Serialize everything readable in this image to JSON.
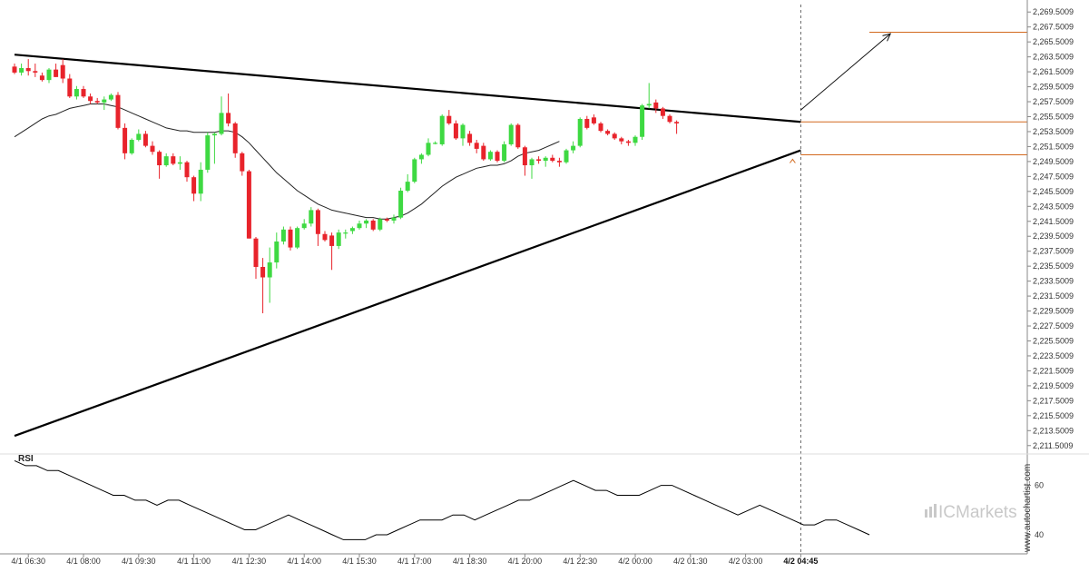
{
  "chart_data": {
    "type": "candlestick",
    "price_axis": {
      "ylim": [
        2210.5,
        2270.5
      ],
      "ticks": [
        "2,269.5009",
        "2,267.5009",
        "2,265.5009",
        "2,263.5009",
        "2,261.5009",
        "2,259.5009",
        "2,257.5009",
        "2,255.5009",
        "2,253.5009",
        "2,251.5009",
        "2,249.5009",
        "2,247.5009",
        "2,245.5009",
        "2,243.5009",
        "2,241.5009",
        "2,239.5009",
        "2,237.5009",
        "2,235.5009",
        "2,233.5009",
        "2,231.5009",
        "2,229.5009",
        "2,227.5009",
        "2,225.5009",
        "2,223.5009",
        "2,221.5009",
        "2,219.5009",
        "2,217.5009",
        "2,215.5009",
        "2,213.5009",
        "2,211.5009"
      ]
    },
    "time_axis": {
      "labels": [
        {
          "i": 2,
          "text": "4/1 06:30"
        },
        {
          "i": 10,
          "text": "4/1 08:00"
        },
        {
          "i": 18,
          "text": "4/1 09:30"
        },
        {
          "i": 26,
          "text": "4/1 11:00"
        },
        {
          "i": 34,
          "text": "4/1 12:30"
        },
        {
          "i": 42,
          "text": "4/1 14:00"
        },
        {
          "i": 50,
          "text": "4/1 15:30"
        },
        {
          "i": 58,
          "text": "4/1 17:00"
        },
        {
          "i": 66,
          "text": "4/1 18:30"
        },
        {
          "i": 74,
          "text": "4/1 20:00"
        },
        {
          "i": 82,
          "text": "4/1 22:30"
        },
        {
          "i": 90,
          "text": "4/2 00:00"
        },
        {
          "i": 98,
          "text": "4/2 01:30"
        },
        {
          "i": 106,
          "text": "4/2 03:00"
        },
        {
          "i": 114,
          "text": "4/2 04:45",
          "bold": true
        }
      ]
    },
    "candles": [
      [
        2262.2,
        2262.6,
        2261.2,
        2261.4
      ],
      [
        2261.4,
        2262.6,
        2261.0,
        2262.0
      ],
      [
        2262.0,
        2263.2,
        2261.0,
        2261.6
      ],
      [
        2261.6,
        2262.6,
        2260.8,
        2261.4
      ],
      [
        2261.0,
        2261.4,
        2260.2,
        2260.4
      ],
      [
        2260.4,
        2262.0,
        2260.0,
        2261.8
      ],
      [
        2261.8,
        2262.6,
        2260.8,
        2260.8
      ],
      [
        2262.4,
        2263.2,
        2260.0,
        2260.6
      ],
      [
        2260.6,
        2261.2,
        2258.0,
        2258.2
      ],
      [
        2258.2,
        2259.6,
        2257.8,
        2259.2
      ],
      [
        2259.2,
        2259.6,
        2258.0,
        2258.2
      ],
      [
        2258.2,
        2258.6,
        2257.2,
        2257.6
      ],
      [
        2257.6,
        2258.0,
        2257.2,
        2257.4
      ],
      [
        2257.4,
        2258.2,
        2256.4,
        2257.8
      ],
      [
        2257.8,
        2258.6,
        2257.6,
        2258.4
      ],
      [
        2258.4,
        2258.8,
        2253.8,
        2254.0
      ],
      [
        2254.0,
        2254.6,
        2249.8,
        2250.6
      ],
      [
        2250.6,
        2252.6,
        2250.4,
        2252.4
      ],
      [
        2252.4,
        2253.8,
        2252.2,
        2253.2
      ],
      [
        2253.2,
        2253.6,
        2251.4,
        2251.6
      ],
      [
        2251.6,
        2252.2,
        2250.4,
        2250.8
      ],
      [
        2250.8,
        2251.0,
        2247.2,
        2249.0
      ],
      [
        2249.0,
        2250.6,
        2248.8,
        2250.2
      ],
      [
        2250.2,
        2250.6,
        2249.0,
        2249.2
      ],
      [
        2249.2,
        2250.2,
        2248.4,
        2249.4
      ],
      [
        2249.4,
        2249.6,
        2246.8,
        2247.4
      ],
      [
        2247.4,
        2247.6,
        2244.2,
        2245.2
      ],
      [
        2245.2,
        2249.4,
        2244.2,
        2248.4
      ],
      [
        2248.4,
        2253.4,
        2248.0,
        2253.0
      ],
      [
        2253.0,
        2253.4,
        2249.2,
        2253.2
      ],
      [
        2253.2,
        2258.2,
        2253.0,
        2256.0
      ],
      [
        2256.0,
        2258.6,
        2254.2,
        2254.6
      ],
      [
        2254.6,
        2254.8,
        2250.0,
        2250.6
      ],
      [
        2250.6,
        2250.8,
        2247.6,
        2248.2
      ],
      [
        2248.2,
        2248.4,
        2239.2,
        2239.2
      ],
      [
        2239.2,
        2239.4,
        2233.8,
        2235.4
      ],
      [
        2235.4,
        2236.6,
        2229.2,
        2234.0
      ],
      [
        2234.0,
        2238.0,
        2230.6,
        2236.0
      ],
      [
        2236.0,
        2240.0,
        2235.2,
        2238.8
      ],
      [
        2238.8,
        2240.8,
        2238.4,
        2240.4
      ],
      [
        2240.4,
        2240.8,
        2237.6,
        2238.0
      ],
      [
        2238.0,
        2240.8,
        2237.8,
        2240.6
      ],
      [
        2240.6,
        2241.8,
        2240.4,
        2241.2
      ],
      [
        2241.2,
        2243.4,
        2240.8,
        2243.0
      ],
      [
        2243.0,
        2243.2,
        2238.2,
        2239.8
      ],
      [
        2239.8,
        2240.2,
        2238.8,
        2239.0
      ],
      [
        2239.6,
        2240.0,
        2235.0,
        2238.2
      ],
      [
        2238.2,
        2240.4,
        2237.8,
        2240.0
      ],
      [
        2240.0,
        2240.4,
        2239.2,
        2240.0
      ],
      [
        2240.2,
        2240.8,
        2239.8,
        2240.6
      ],
      [
        2240.6,
        2241.6,
        2240.4,
        2241.2
      ],
      [
        2241.2,
        2241.8,
        2240.6,
        2241.6
      ],
      [
        2241.6,
        2241.8,
        2240.2,
        2240.4
      ],
      [
        2240.4,
        2242.0,
        2240.2,
        2241.8
      ],
      [
        2241.8,
        2242.0,
        2241.4,
        2241.6
      ],
      [
        2241.6,
        2242.4,
        2241.2,
        2242.0
      ],
      [
        2242.0,
        2246.0,
        2241.8,
        2245.6
      ],
      [
        2245.6,
        2247.8,
        2245.4,
        2246.8
      ],
      [
        2246.8,
        2250.0,
        2246.6,
        2249.8
      ],
      [
        2249.8,
        2250.6,
        2249.2,
        2250.4
      ],
      [
        2250.4,
        2252.6,
        2250.2,
        2252.0
      ],
      [
        2252.0,
        2252.2,
        2251.8,
        2252.0
      ],
      [
        2251.8,
        2255.8,
        2251.6,
        2255.6
      ],
      [
        2255.6,
        2256.4,
        2254.4,
        2254.6
      ],
      [
        2254.6,
        2255.0,
        2252.4,
        2252.6
      ],
      [
        2252.6,
        2254.6,
        2251.6,
        2254.4
      ],
      [
        2253.2,
        2253.6,
        2251.6,
        2252.0
      ],
      [
        2252.0,
        2252.4,
        2250.6,
        2251.2
      ],
      [
        2251.6,
        2252.0,
        2249.6,
        2249.8
      ],
      [
        2249.8,
        2251.0,
        2249.6,
        2250.8
      ],
      [
        2250.8,
        2251.0,
        2249.4,
        2249.6
      ],
      [
        2249.6,
        2252.2,
        2249.4,
        2251.8
      ],
      [
        2251.8,
        2254.6,
        2251.6,
        2254.4
      ],
      [
        2254.4,
        2254.6,
        2251.2,
        2251.4
      ],
      [
        2251.4,
        2251.6,
        2247.6,
        2249.0
      ],
      [
        2249.0,
        2250.0,
        2247.2,
        2249.8
      ],
      [
        2249.8,
        2250.2,
        2249.2,
        2249.6
      ],
      [
        2249.6,
        2250.2,
        2248.8,
        2250.0
      ],
      [
        2250.0,
        2250.4,
        2249.4,
        2249.6
      ],
      [
        2249.6,
        2250.0,
        2248.8,
        2249.4
      ],
      [
        2249.4,
        2251.2,
        2249.2,
        2251.0
      ],
      [
        2251.0,
        2252.2,
        2250.6,
        2251.6
      ],
      [
        2251.6,
        2255.4,
        2251.4,
        2255.2
      ],
      [
        2255.2,
        2255.6,
        2253.8,
        2254.0
      ],
      [
        2255.4,
        2255.8,
        2254.4,
        2254.6
      ],
      [
        2254.6,
        2254.8,
        2253.4,
        2253.6
      ],
      [
        2253.6,
        2253.8,
        2253.0,
        2253.2
      ],
      [
        2253.2,
        2253.4,
        2252.4,
        2252.6
      ],
      [
        2252.6,
        2252.8,
        2251.8,
        2252.2
      ],
      [
        2252.2,
        2252.4,
        2251.6,
        2252.0
      ],
      [
        2252.0,
        2253.0,
        2251.6,
        2252.8
      ],
      [
        2252.8,
        2257.2,
        2252.4,
        2257.0
      ],
      [
        2257.0,
        2260.0,
        2256.6,
        2257.2
      ],
      [
        2257.4,
        2257.8,
        2256.0,
        2256.6
      ],
      [
        2256.6,
        2256.8,
        2255.2,
        2255.6
      ],
      [
        2255.6,
        2255.8,
        2254.6,
        2254.8
      ],
      [
        2254.8,
        2255.0,
        2253.2,
        2254.6
      ]
    ],
    "ma_values": [
      2252.8,
      2253.4,
      2254.0,
      2254.6,
      2255.2,
      2255.6,
      2255.8,
      2256.2,
      2256.6,
      2256.8,
      2257.0,
      2257.2,
      2257.2,
      2257.2,
      2257.0,
      2256.8,
      2256.4,
      2256.0,
      2255.6,
      2255.2,
      2254.8,
      2254.4,
      2254.0,
      2253.8,
      2253.6,
      2253.6,
      2253.4,
      2253.4,
      2253.4,
      2253.4,
      2253.6,
      2253.6,
      2253.4,
      2252.8,
      2252.0,
      2251.0,
      2250.0,
      2249.0,
      2248.0,
      2247.2,
      2246.4,
      2245.6,
      2245.0,
      2244.4,
      2243.8,
      2243.4,
      2243.0,
      2242.8,
      2242.6,
      2242.4,
      2242.2,
      2242.0,
      2242.0,
      2241.8,
      2241.8,
      2242.0,
      2242.2,
      2242.6,
      2243.2,
      2243.8,
      2244.6,
      2245.4,
      2246.2,
      2246.8,
      2247.4,
      2247.8,
      2248.2,
      2248.6,
      2248.8,
      2249.0,
      2249.0,
      2249.2,
      2249.6,
      2250.2,
      2250.6,
      2250.8,
      2251.0,
      2251.4,
      2251.8,
      2252.2
    ],
    "ma_start_index": 0,
    "rsi": {
      "title": "RSI",
      "ylim": [
        33,
        72
      ],
      "ticks": [
        "60",
        "40"
      ],
      "values": [
        70,
        68,
        68,
        66,
        66,
        64,
        62,
        60,
        58,
        56,
        56,
        54,
        54,
        52,
        54,
        54,
        52,
        50,
        48,
        46,
        44,
        42,
        42,
        44,
        46,
        48,
        46,
        44,
        42,
        40,
        38,
        38,
        38,
        40,
        40,
        42,
        44,
        46,
        46,
        46,
        48,
        48,
        46,
        48,
        50,
        52,
        54,
        54,
        56,
        58,
        60,
        62,
        60,
        58,
        58,
        56,
        56,
        56,
        58,
        60,
        60,
        58,
        56,
        54,
        52,
        50,
        48,
        50,
        52,
        50,
        48,
        46,
        44,
        44,
        46,
        46,
        44,
        42,
        40
      ]
    },
    "levels": {
      "upper_target": 2266.8,
      "resistance": 2254.8,
      "support": 2250.4
    },
    "trendlines": {
      "resistance": [
        [
          0,
          2263.8
        ],
        [
          114,
          2254.8
        ]
      ],
      "support": [
        [
          0,
          2212.8
        ],
        [
          114,
          2251.0
        ]
      ],
      "breakout_arrow": [
        [
          114,
          2256.4
        ],
        [
          127,
          2266.6
        ]
      ]
    },
    "current_index": 114,
    "colors": {
      "bull": "#3ed942",
      "bear": "#e8232b",
      "bull_outline": "#2e9a2e",
      "bear_hollow": "#e8232b",
      "level": "#d2691e",
      "trend": "#000000"
    },
    "watermark": "www.autochartist.com",
    "brand": "ICMarkets"
  }
}
